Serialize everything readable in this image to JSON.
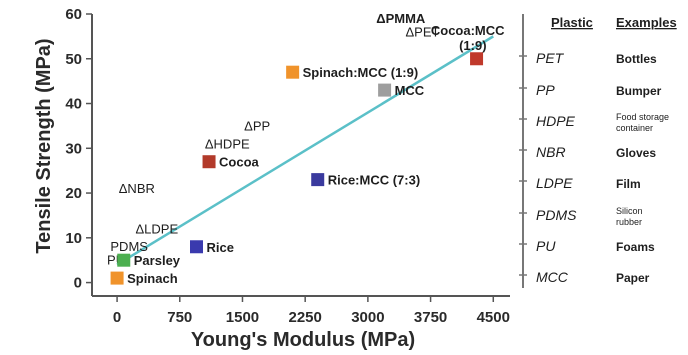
{
  "chart_data": {
    "type": "scatter",
    "xlabel": "Young's Modulus (MPa)",
    "ylabel": "Tensile Strength (MPa)",
    "xlim": [
      -300,
      4700
    ],
    "ylim": [
      -3,
      60
    ],
    "x_ticks": [
      0,
      750,
      1500,
      2250,
      3000,
      3750,
      4500
    ],
    "y_ticks": [
      0,
      10,
      20,
      30,
      40,
      50,
      60
    ],
    "grid": false,
    "plastics": [
      {
        "label": "ΔPMMA",
        "x": 3100,
        "y": 58
      },
      {
        "label": "ΔPET",
        "x": 3450,
        "y": 55
      },
      {
        "label": "ΔPP",
        "x": 1520,
        "y": 34
      },
      {
        "label": "ΔHDPE",
        "x": 1050,
        "y": 30
      },
      {
        "label": "ΔNBR",
        "x": 20,
        "y": 20
      },
      {
        "label": "ΔLDPE",
        "x": 220,
        "y": 11
      },
      {
        "label": "PDMS",
        "x": -80,
        "y": 7
      },
      {
        "label": "PU",
        "x": -120,
        "y": 4
      }
    ],
    "bioplastics": [
      {
        "label": "Cocoa:MCC (1:9)",
        "x": 4300,
        "y": 50,
        "color": "#c0392b"
      },
      {
        "label": "Spinach:MCC (1:9)",
        "x": 2100,
        "y": 47,
        "color": "#f0932b"
      },
      {
        "label": "MCC",
        "x": 3200,
        "y": 43,
        "color": "#9e9e9e"
      },
      {
        "label": "Cocoa",
        "x": 1100,
        "y": 27,
        "color": "#b23a2a"
      },
      {
        "label": "Rice:MCC (7:3)",
        "x": 2400,
        "y": 23,
        "color": "#3a3a9e"
      },
      {
        "label": "Rice",
        "x": 950,
        "y": 8,
        "color": "#3a3aae"
      },
      {
        "label": "Parsley",
        "x": 80,
        "y": 5,
        "color": "#4caf50"
      },
      {
        "label": "Spinach",
        "x": 0,
        "y": 1,
        "color": "#f0932b"
      }
    ],
    "trendline": {
      "x": [
        0,
        4500
      ],
      "y": [
        4,
        55
      ],
      "color": "#5bc0c8"
    }
  },
  "legend": {
    "header_plastic": "Plastic",
    "header_examples": "Examples",
    "rows": [
      {
        "plastic": "PET",
        "example": "Bottles"
      },
      {
        "plastic": "PP",
        "example": "Bumper"
      },
      {
        "plastic": "HDPE",
        "example": "Food storage container"
      },
      {
        "plastic": "NBR",
        "example": "Gloves"
      },
      {
        "plastic": "LDPE",
        "example": "Film"
      },
      {
        "plastic": "PDMS",
        "example": "Silicon rubber"
      },
      {
        "plastic": "PU",
        "example": "Foams"
      },
      {
        "plastic": "MCC",
        "example": "Paper"
      }
    ]
  }
}
